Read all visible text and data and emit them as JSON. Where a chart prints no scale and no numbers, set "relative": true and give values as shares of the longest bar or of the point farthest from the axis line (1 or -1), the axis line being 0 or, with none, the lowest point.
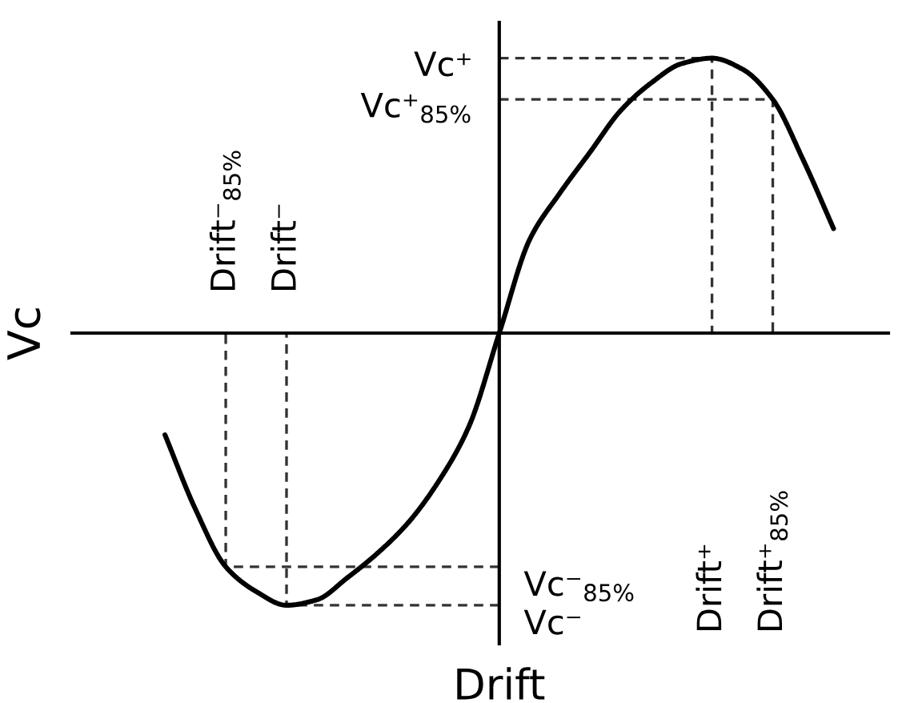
{
  "chart_data": {
    "type": "line",
    "xlabel": "Drift",
    "ylabel": "Vc",
    "relative": true,
    "line_style": "solid",
    "categories": [
      null,
      null,
      null,
      null,
      null,
      null,
      null,
      null,
      null,
      null,
      null,
      null,
      null,
      null,
      null,
      null,
      null,
      null,
      null,
      null,
      null,
      null,
      null
    ],
    "series": [
      {
        "color": "#000000",
        "values": [
          -0.37,
          -0.64,
          -0.85,
          -0.94,
          -0.99,
          -0.97,
          -0.89,
          -0.8,
          -0.69,
          -0.54,
          -0.34,
          0,
          0.34,
          0.51,
          0.66,
          0.81,
          0.91,
          0.98,
          1,
          0.96,
          0.85,
          0.63,
          0.38
        ]
      }
    ],
    "ref_lines": [
      {
        "axis": "y",
        "value": 1,
        "label": "Vc⁺",
        "color": "#333333",
        "line_style": "dashed"
      },
      {
        "axis": "y",
        "value": 0.85,
        "label": "Vc⁺$_{85%}$",
        "color": "#333333",
        "line_style": "dashed"
      },
      {
        "axis": "y",
        "value": -0.85,
        "label": "Vc⁻$_{85%}$",
        "color": "#333333",
        "line_style": "dashed"
      },
      {
        "axis": "y",
        "value": -0.99,
        "label": "Vc⁻",
        "color": "#333333",
        "line_style": "dashed"
      }
    ],
    "annotations": [
      "Drift⁺",
      "Drift⁺$_{85%}$",
      "Drift⁻$_{85%}$",
      "Drift⁻"
    ]
  }
}
